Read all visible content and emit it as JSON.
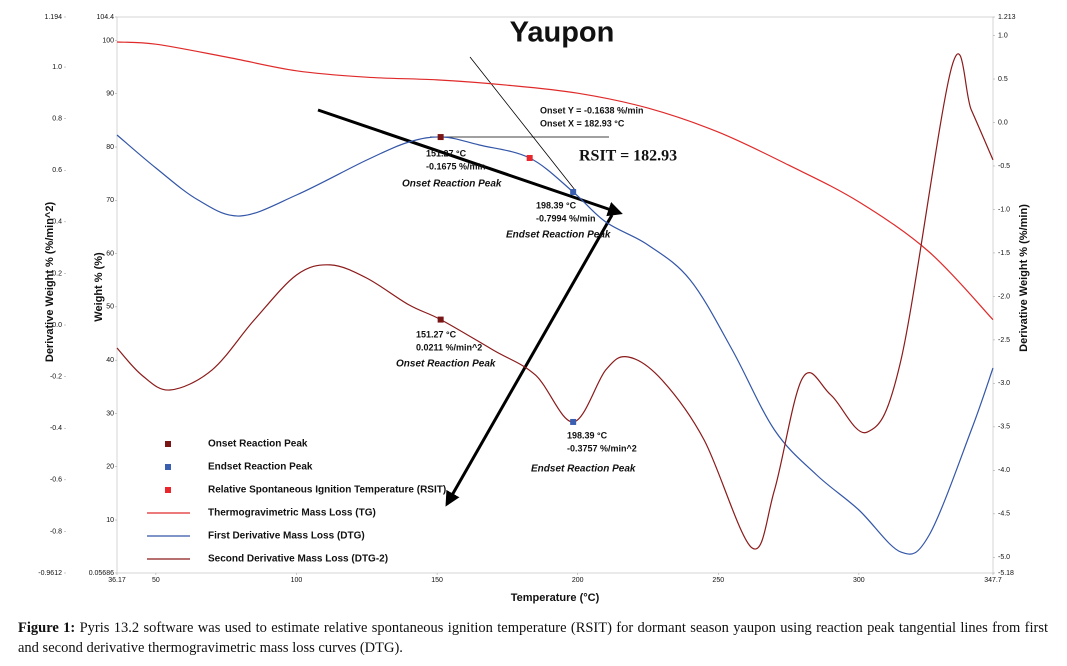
{
  "chart_data": {
    "type": "line",
    "title": "Yaupon",
    "x_label": "Temperature (°C)",
    "y_label": "Weight % (%)",
    "y2_label": "Derivative Weight % (%/min)",
    "y3_label": "Derivative Weight % (%/min^2)",
    "xlim": [
      36.17,
      347.7
    ],
    "xticks": [
      36.17,
      50,
      100,
      150,
      200,
      250,
      300,
      347.7
    ],
    "ylim": [
      0.05686,
      104.4
    ],
    "yticks": [
      0.05686,
      10,
      20,
      30,
      40,
      50,
      60,
      70,
      80,
      90,
      100,
      104.4
    ],
    "y2lim": [
      -5.18,
      1.213
    ],
    "y2ticks": [
      -5.18,
      {
        "value": -5,
        "label": "-5.0"
      },
      -4.5,
      {
        "value": -4,
        "label": "-4.0"
      },
      -3.5,
      {
        "value": -3,
        "label": "-3.0"
      },
      -2.5,
      {
        "value": -2,
        "label": "-2.0"
      },
      -1.5,
      {
        "value": -1,
        "label": "-1.0"
      },
      -0.5,
      {
        "value": 0,
        "label": "0.0"
      },
      0.5,
      {
        "value": 1,
        "label": "1.0"
      },
      1.213
    ],
    "y3lim": [
      -0.9612,
      1.194
    ],
    "y3ticks": [
      -0.9612,
      -0.8,
      -0.6,
      -0.4,
      -0.2,
      {
        "value": 0,
        "label": "0.0"
      },
      0.2,
      0.4,
      0.6,
      0.8,
      {
        "value": 1,
        "label": "1.0"
      },
      1.194
    ],
    "series": [
      {
        "name": "Thermogravimetric Mass Loss (TG)",
        "color": "#e02a2a",
        "axis": "y",
        "x": [
          36.17,
          50,
          75,
          100,
          125,
          150,
          175,
          200,
          225,
          250,
          275,
          300,
          325,
          347.7
        ],
        "values": [
          99.7,
          99.3,
          96.9,
          94.3,
          93.1,
          92.6,
          91.6,
          90.1,
          87.3,
          82.8,
          76.6,
          69.7,
          60.3,
          47.6
        ]
      },
      {
        "name": "First Derivative Mass Loss (DTG)",
        "color": "#3356a8",
        "axis": "y2",
        "x": [
          36.17,
          50,
          65,
          80,
          100,
          125,
          140,
          152,
          165,
          182.93,
          198.39,
          210,
          225,
          240,
          255,
          270,
          285,
          300,
          315,
          325,
          340,
          347.7
        ],
        "values": [
          -0.144,
          -0.523,
          -0.891,
          -1.075,
          -0.834,
          -0.431,
          -0.224,
          -0.167,
          -0.259,
          -0.408,
          -0.799,
          -1.144,
          -1.409,
          -1.811,
          -2.616,
          -3.536,
          -4.053,
          -4.456,
          -4.94,
          -4.743,
          -3.536,
          -2.823
        ]
      },
      {
        "name": "Second Derivative Mass Loss (DTG-2)",
        "color": "#8b1a1a",
        "axis": "y3",
        "x": [
          36.17,
          45,
          55,
          70,
          85,
          100,
          112,
          125,
          140,
          151.27,
          170,
          185,
          198.39,
          210,
          218,
          230,
          245,
          262,
          270,
          280,
          290,
          303,
          315,
          333,
          340,
          347.7
        ],
        "values": [
          -0.089,
          -0.194,
          -0.252,
          -0.174,
          0.02,
          0.194,
          0.233,
          0.182,
          0.078,
          0.0211,
          -0.097,
          -0.194,
          -0.3757,
          -0.174,
          -0.124,
          -0.213,
          -0.446,
          -0.864,
          -0.639,
          -0.205,
          -0.271,
          -0.415,
          -0.135,
          1.0,
          0.834,
          0.64
        ]
      }
    ],
    "markers": [
      {
        "name": "Onset Reaction Peak",
        "color": "#7a1515",
        "points": [
          {
            "x": 151.27,
            "y": -0.1675,
            "axis": "y2"
          },
          {
            "x": 151.27,
            "y": 0.0211,
            "axis": "y3"
          }
        ]
      },
      {
        "name": "Endset Reaction Peak",
        "color": "#3a5fb0",
        "points": [
          {
            "x": 198.39,
            "y": -0.7994,
            "axis": "y2"
          },
          {
            "x": 198.39,
            "y": -0.3757,
            "axis": "y3"
          }
        ]
      },
      {
        "name": "Relative Spontaneous Ignition Temperature (RSIT)",
        "color": "#e8262b",
        "points": [
          {
            "x": 182.93,
            "y": -0.408,
            "axis": "y2"
          }
        ]
      }
    ],
    "annotations": [
      "Onset Y = -0.1638 %/min",
      "Onset X = 182.93 °C",
      "RSIT = 182.93",
      "151.27 °C",
      "-0.1675 %/min",
      "Onset Reaction Peak",
      "198.39 °C",
      "-0.7994 %/min",
      "Endset Reaction Peak",
      "151.27 °C",
      "0.0211 %/min^2",
      "Onset Reaction Peak",
      "198.39 °C",
      "-0.3757 %/min^2",
      "Endset Reaction Peak"
    ]
  },
  "caption": {
    "label": "Figure 1:",
    "text": "Pyris 13.2 software was used to estimate relative spontaneous ignition temperature (RSIT) for dormant season yaupon using reaction peak tangential lines from first and second derivative thermogravimetric mass loss curves (DTG)."
  }
}
